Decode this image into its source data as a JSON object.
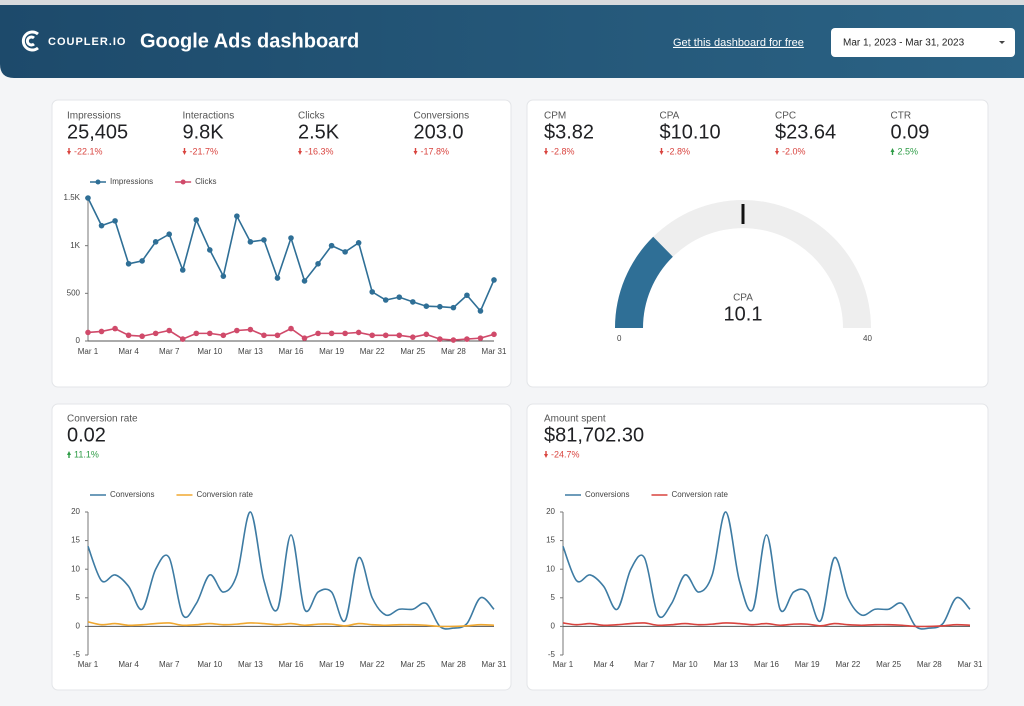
{
  "header": {
    "brand": "COUPLER.IO",
    "title": "Google Ads dashboard",
    "link": "Get this dashboard for free",
    "date_range": "Mar 1, 2023 - Mar 31, 2023"
  },
  "cards": [
    {
      "metrics": [
        {
          "label": "Impressions",
          "value": "25,405",
          "change": "-22.1%"
        },
        {
          "label": "Interactions",
          "value": "9.8K",
          "change": "-21.7%"
        },
        {
          "label": "Clicks",
          "value": "2.5K",
          "change": "-16.3%"
        },
        {
          "label": "Conversions",
          "value": "203.0",
          "change": "-17.8%"
        }
      ]
    },
    {
      "metrics": [
        {
          "label": "CPM",
          "value": "$3.82",
          "change": "-2.8%"
        },
        {
          "label": "CPA",
          "value": "$10.10",
          "change": "-2.8%"
        },
        {
          "label": "CPC",
          "value": "$23.64",
          "change": "-2.0%"
        },
        {
          "label": "CTR",
          "value": "0.09",
          "change": "2.5%"
        }
      ]
    },
    {
      "metrics": [
        {
          "label": "Conversion rate",
          "value": "0.02",
          "change": "11.1%"
        }
      ]
    },
    {
      "metrics": [
        {
          "label": "Amount spent",
          "value": "$81,702.30",
          "change": "-24.7%"
        }
      ]
    }
  ],
  "chart_data": [
    {
      "type": "line",
      "markers": true,
      "smooth": false,
      "categories": [
        "Mar 1",
        null,
        null,
        "Mar 4",
        null,
        null,
        "Mar 7",
        null,
        null,
        "Mar 10",
        null,
        null,
        "Mar 13",
        null,
        null,
        "Mar 16",
        null,
        null,
        "Mar 19",
        null,
        null,
        "Mar 22",
        null,
        null,
        "Mar 25",
        null,
        null,
        "Mar 28",
        null,
        null,
        "Mar 31"
      ],
      "ylim": [
        0,
        1500
      ],
      "yticks": [
        0,
        500,
        {
          "value": 1000,
          "label": "1K"
        },
        {
          "value": 1500,
          "label": "1.5K"
        }
      ],
      "series": [
        {
          "name": "Impressions",
          "color": "#2f6f96",
          "values": [
            1500,
            1210,
            1260,
            810,
            840,
            1040,
            1120,
            745,
            1270,
            955,
            680,
            1310,
            1040,
            1060,
            660,
            1080,
            630,
            810,
            1000,
            935,
            1030,
            515,
            430,
            460,
            410,
            365,
            360,
            350,
            480,
            315,
            640
          ]
        },
        {
          "name": "Clicks",
          "color": "#d04a6a",
          "values": [
            90,
            100,
            130,
            60,
            50,
            80,
            110,
            20,
            80,
            80,
            60,
            110,
            120,
            60,
            60,
            130,
            30,
            80,
            80,
            80,
            90,
            60,
            60,
            60,
            40,
            70,
            20,
            10,
            20,
            30,
            70
          ]
        }
      ]
    },
    {
      "type": "gauge",
      "title": "CPA",
      "value": 10.1,
      "target": 20,
      "range": [
        0,
        40
      ],
      "ticks": [
        0,
        40
      ],
      "color": "#2f6f96"
    },
    {
      "type": "line",
      "markers": false,
      "smooth": true,
      "categories": [
        "Mar 1",
        null,
        null,
        "Mar 4",
        null,
        null,
        "Mar 7",
        null,
        null,
        "Mar 10",
        null,
        null,
        "Mar 13",
        null,
        null,
        "Mar 16",
        null,
        null,
        "Mar 19",
        null,
        null,
        "Mar 22",
        null,
        null,
        "Mar 25",
        null,
        null,
        "Mar 28",
        null,
        null,
        "Mar 31"
      ],
      "ylim": [
        -5,
        20
      ],
      "yticks": [
        -5,
        0,
        5,
        10,
        15,
        20
      ],
      "series": [
        {
          "name": "Conversions",
          "color": "#3d7ba3",
          "values": [
            14,
            8,
            9,
            7,
            3,
            10,
            12,
            2,
            4,
            9,
            6,
            9,
            20,
            8,
            3,
            16,
            3,
            6,
            6,
            1,
            12,
            5,
            2,
            3,
            3,
            4,
            0,
            -0.3,
            0.5,
            5,
            3
          ]
        },
        {
          "name": "Conversion rate",
          "color": "#f0a830",
          "values": [
            0.8,
            0.3,
            0.5,
            0.2,
            0.3,
            0.5,
            0.6,
            0.2,
            0.3,
            0.5,
            0.3,
            0.4,
            0.6,
            0.5,
            0.3,
            0.5,
            0.2,
            0.4,
            0.4,
            0.1,
            0.5,
            0.3,
            0.2,
            0.3,
            0.3,
            0.2,
            0,
            0,
            0.1,
            0.3,
            0.2
          ]
        }
      ]
    },
    {
      "type": "line",
      "markers": false,
      "smooth": true,
      "categories": [
        "Mar 1",
        null,
        null,
        "Mar 4",
        null,
        null,
        "Mar 7",
        null,
        null,
        "Mar 10",
        null,
        null,
        "Mar 13",
        null,
        null,
        "Mar 16",
        null,
        null,
        "Mar 19",
        null,
        null,
        "Mar 22",
        null,
        null,
        "Mar 25",
        null,
        null,
        "Mar 28",
        null,
        null,
        "Mar 31"
      ],
      "ylim": [
        -5,
        20
      ],
      "yticks": [
        -5,
        0,
        5,
        10,
        15,
        20
      ],
      "series": [
        {
          "name": "Conversions",
          "color": "#3d7ba3",
          "values": [
            14,
            8,
            9,
            7,
            3,
            10,
            12,
            2,
            4,
            9,
            6,
            9,
            20,
            8,
            3,
            16,
            3,
            6,
            6,
            1,
            12,
            5,
            2,
            3,
            3,
            4,
            0,
            -0.3,
            0.5,
            5,
            3
          ]
        },
        {
          "name": "Conversion rate",
          "color": "#d9443f",
          "values": [
            0.6,
            0.3,
            0.5,
            0.2,
            0.3,
            0.5,
            0.6,
            0.2,
            0.3,
            0.5,
            0.3,
            0.4,
            0.6,
            0.5,
            0.3,
            0.5,
            0.2,
            0.4,
            0.4,
            0.1,
            0.5,
            0.3,
            0.2,
            0.3,
            0.3,
            0.2,
            0,
            0,
            0.1,
            0.3,
            0.2
          ]
        }
      ]
    }
  ]
}
